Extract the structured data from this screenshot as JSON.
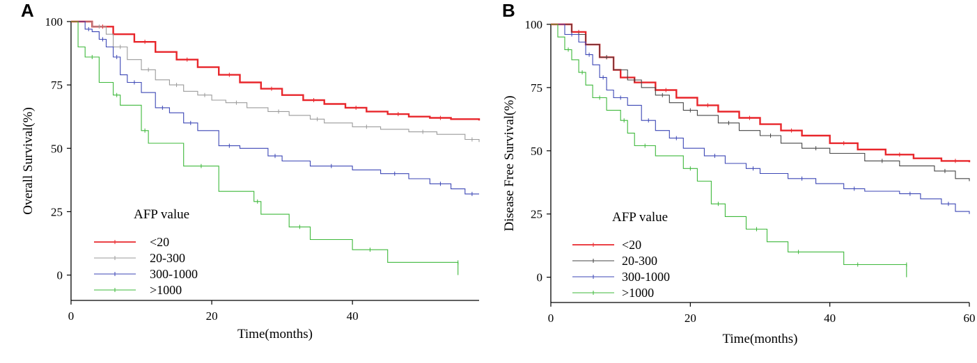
{
  "figure": {
    "panel_labels": [
      "A",
      "B"
    ]
  },
  "chart_data": [
    {
      "type": "line",
      "subtype": "kaplan-meier",
      "panel": "A",
      "title": "",
      "xlabel": "Time(months)",
      "ylabel": "Overall Survival(%)",
      "xlim": [
        0,
        58
      ],
      "ylim": [
        -10,
        100
      ],
      "xticks": [
        0,
        20,
        40
      ],
      "yticks": [
        0,
        25,
        50,
        75,
        100
      ],
      "legend": {
        "title": "AFP value",
        "position": "bottom-left"
      },
      "series": [
        {
          "name": "<20",
          "color": "#e8262b",
          "width": 2.4,
          "x": [
            0,
            1,
            3,
            6,
            9,
            12,
            15,
            18,
            21,
            24,
            27,
            30,
            33,
            36,
            39,
            42,
            45,
            48,
            51,
            54,
            58
          ],
          "y": [
            100,
            100,
            98,
            95,
            92,
            88,
            85,
            82,
            79,
            76,
            73.5,
            71,
            69,
            67.5,
            66,
            64.5,
            63.5,
            62.5,
            62,
            61.5,
            61
          ]
        },
        {
          "name": "20-300",
          "color": "#9a9a9a",
          "width": 1.1,
          "x": [
            0,
            1,
            3,
            5,
            6,
            8,
            10,
            12,
            14,
            16,
            18,
            20,
            22,
            25,
            28,
            31,
            34,
            36,
            40,
            44,
            48,
            52,
            56,
            58
          ],
          "y": [
            100,
            100,
            98,
            95,
            90,
            85,
            81,
            77,
            75,
            72.5,
            71,
            69,
            68,
            66,
            64.5,
            63,
            61.5,
            60,
            58.5,
            57.5,
            56.5,
            55.5,
            53.5,
            52.5
          ]
        },
        {
          "name": "300-1000",
          "color": "#3b46b5",
          "width": 1.1,
          "x": [
            0,
            1,
            2,
            3,
            4,
            5,
            6,
            7,
            8,
            10,
            12,
            14,
            16,
            18,
            21,
            24,
            28,
            30,
            34,
            40,
            44,
            48,
            51,
            54,
            56,
            58
          ],
          "y": [
            100,
            100,
            97,
            96,
            93,
            90,
            86,
            79,
            76,
            72,
            66,
            64,
            60,
            57,
            51,
            50,
            47,
            45,
            43,
            41.5,
            40,
            38,
            36,
            34,
            32,
            32
          ]
        },
        {
          "name": ">1000",
          "color": "#3db83a",
          "width": 1.1,
          "x": [
            0,
            1,
            2,
            4,
            6,
            7,
            10,
            11,
            16,
            21,
            26,
            27,
            31,
            34,
            40,
            45,
            55,
            55
          ],
          "y": [
            100,
            90,
            86,
            76,
            71,
            67,
            57,
            52,
            43,
            33,
            29,
            24,
            19,
            14,
            10,
            5,
            5,
            0
          ]
        }
      ]
    },
    {
      "type": "line",
      "subtype": "kaplan-meier",
      "panel": "B",
      "title": "",
      "xlabel": "Time(months)",
      "ylabel": "Disease Free Survival(%)",
      "xlim": [
        0,
        60
      ],
      "ylim": [
        -10,
        100
      ],
      "xticks": [
        0,
        20,
        40,
        60
      ],
      "yticks": [
        0,
        25,
        50,
        75,
        100
      ],
      "legend": {
        "title": "AFP value",
        "position": "bottom-left"
      },
      "series": [
        {
          "name": "<20",
          "color": "#e8262b",
          "width": 2.4,
          "x": [
            0,
            1,
            3,
            5,
            7,
            9,
            10,
            12,
            15,
            18,
            21,
            24,
            27,
            30,
            33,
            36,
            40,
            44,
            48,
            52,
            56,
            60
          ],
          "y": [
            100,
            100,
            97,
            92,
            87,
            82,
            79,
            77,
            74,
            71,
            68,
            65.5,
            63,
            60.5,
            58,
            56,
            53,
            50.5,
            48.5,
            47,
            46,
            45.5
          ]
        },
        {
          "name": "20-300",
          "color": "#444444",
          "width": 1.1,
          "x": [
            0,
            1,
            3,
            5,
            7,
            9,
            11,
            13,
            15,
            17,
            19,
            21,
            24,
            27,
            30,
            33,
            36,
            40,
            45,
            50,
            55,
            58,
            60
          ],
          "y": [
            100,
            100,
            96,
            92,
            87,
            82,
            78,
            75,
            72,
            69,
            66,
            64,
            61,
            58,
            56,
            53,
            51,
            49,
            46,
            44,
            42,
            39,
            38
          ]
        },
        {
          "name": "300-1000",
          "color": "#3b46b5",
          "width": 1.1,
          "x": [
            0,
            1,
            2,
            4,
            5,
            6,
            7,
            8,
            9,
            11,
            13,
            15,
            17,
            19,
            22,
            25,
            28,
            30,
            34,
            38,
            42,
            45,
            50,
            53,
            56,
            58,
            60
          ],
          "y": [
            100,
            100,
            96,
            93,
            88,
            84,
            79,
            74,
            71,
            68,
            62,
            58,
            55,
            51,
            48,
            45,
            43,
            41,
            39,
            37,
            35,
            34,
            33,
            31,
            29,
            26,
            25
          ]
        },
        {
          "name": ">1000",
          "color": "#3db83a",
          "width": 1.1,
          "x": [
            0,
            1,
            2,
            3,
            4,
            5,
            6,
            8,
            10,
            11,
            12,
            15,
            19,
            21,
            23,
            25,
            28,
            31,
            34,
            37,
            42,
            46,
            51,
            51
          ],
          "y": [
            100,
            95,
            90,
            86,
            81,
            76,
            71,
            66,
            62,
            57,
            52,
            48,
            43,
            38,
            29,
            24,
            19,
            14,
            10,
            10,
            5,
            5,
            5,
            0
          ]
        }
      ]
    }
  ]
}
